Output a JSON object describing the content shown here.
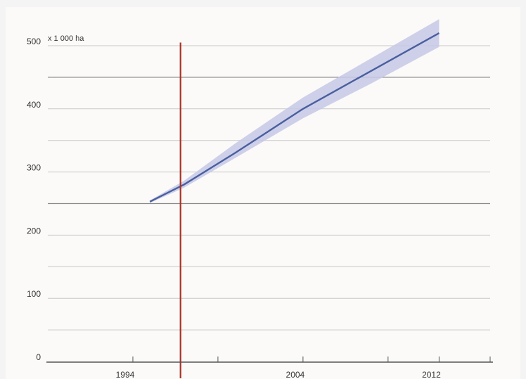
{
  "chart_data": {
    "type": "line",
    "unit_label": "x 1 000 ha",
    "x_ticks": [
      1994,
      2004,
      2012
    ],
    "x_minor_ticks": [
      1999,
      2009
    ],
    "xlim": [
      1989,
      2015
    ],
    "y_ticks": [
      0,
      100,
      200,
      300,
      400,
      500
    ],
    "ylim": [
      0,
      500
    ],
    "gridlines_y": [
      50,
      100,
      150,
      200,
      250,
      300,
      350,
      400,
      450,
      500
    ],
    "emphasized_gridlines_y": [
      250,
      450
    ],
    "grid": true,
    "series": [
      {
        "x": [
          1995,
          1997,
          2000,
          2004,
          2008,
          2012
        ],
        "y": [
          253,
          280,
          330,
          400,
          460,
          520
        ],
        "band_lower": [
          251,
          275,
          322,
          385,
          440,
          498
        ],
        "band_upper": [
          255,
          286,
          345,
          418,
          480,
          542
        ]
      }
    ],
    "reference_line": {
      "x": 1996.8,
      "y_top": 505
    },
    "colors": {
      "line": "#4a5f9e",
      "band": "#c5c8e8",
      "reference_line": "#a83226",
      "grid": "#c8c8c8",
      "grid_emphasis": "#8a8a8a",
      "axis": "#555555",
      "plot_background": "#fbfaf8",
      "page_background": "#f4f4f4"
    }
  }
}
